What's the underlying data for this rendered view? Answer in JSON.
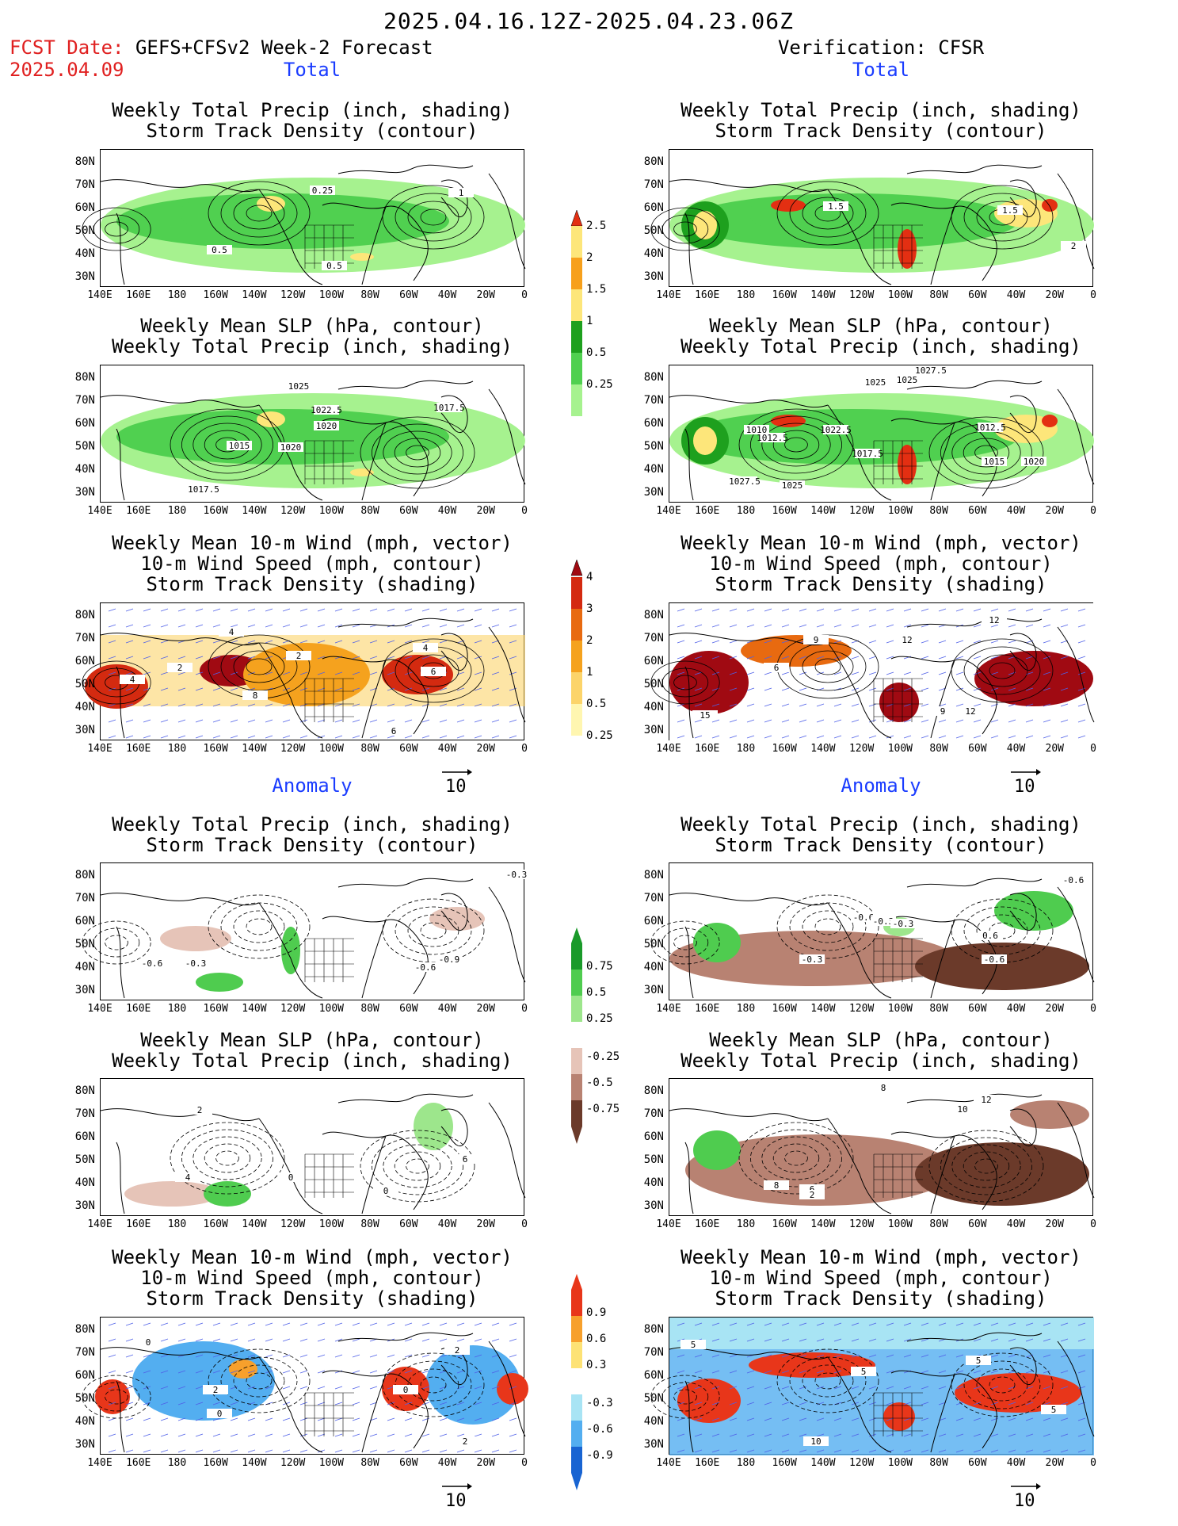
{
  "header": {
    "date_range": "2025.04.16.12Z-2025.04.23.06Z",
    "fcst_date_label": "FCST Date:",
    "forecast_name": "GEFS+CFSv2 Week-2 Forecast",
    "fcst_date_value": "2025.04.09",
    "verification": "Verification: CFSR"
  },
  "sections": {
    "total": "Total",
    "anomaly": "Anomaly"
  },
  "panel_titles": {
    "precip_storm": [
      "Weekly Total Precip (inch, shading)",
      "Storm Track Density (contour)"
    ],
    "slp_precip": [
      "Weekly Mean SLP (hPa, contour)",
      "Weekly Total Precip (inch, shading)"
    ],
    "wind_storm": [
      "Weekly Mean 10-m Wind (mph, vector)",
      "10-m Wind Speed (mph, contour)",
      "Storm Track Density (shading)"
    ]
  },
  "axes": {
    "lat_labels": [
      "80N",
      "70N",
      "60N",
      "50N",
      "40N",
      "30N"
    ],
    "lon_labels": [
      "140E",
      "160E",
      "180",
      "160W",
      "140W",
      "120W",
      "100W",
      "80W",
      "60W",
      "40W",
      "20W",
      "0"
    ]
  },
  "vector_ref": "10",
  "colorbars": {
    "precip_total": [
      "2.5",
      "2",
      "1.5",
      "1",
      "0.5",
      "0.25"
    ],
    "storm_total": [
      "4",
      "3",
      "2",
      "1",
      "0.5",
      "0.25"
    ],
    "precip_anom": [
      "0.75",
      "0.5",
      "0.25",
      "-0.25",
      "-0.5",
      "-0.75"
    ],
    "storm_anom": [
      "0.9",
      "0.6",
      "0.3",
      "-0.3",
      "-0.6",
      "-0.9"
    ]
  },
  "contour_labels": {
    "fc_tot_precip": [
      "0.25",
      "1",
      "0.5",
      "0.5"
    ],
    "ve_tot_precip": [
      "1.5",
      "1.5",
      "2"
    ],
    "fc_tot_slp": [
      "1025",
      "1022.5",
      "1017.5",
      "1020",
      "1015",
      "1020",
      "1017.5"
    ],
    "ve_tot_slp": [
      "1027.5",
      "1025",
      "1025",
      "1010",
      "1012.5",
      "1022.5",
      "1017.5",
      "1012.5",
      "1015",
      "1020",
      "1027.5",
      "1025"
    ],
    "fc_tot_wind": [
      "4",
      "2",
      "2",
      "4",
      "8",
      "6",
      "4",
      "6"
    ],
    "ve_tot_wind": [
      "12",
      "9",
      "6",
      "12",
      "15",
      "12",
      "9"
    ],
    "fc_anom_precip": [
      "-0.3",
      "-0.6",
      "-0.3",
      "-0.6",
      "-0.9"
    ],
    "ve_anom_precip": [
      "-0.6",
      "-0.6",
      "-0.3",
      "-0.3",
      "-0.6",
      "0.6",
      "-0.3"
    ],
    "fc_anom_slp": [
      "2",
      "4",
      "0",
      "6",
      "0"
    ],
    "ve_anom_slp": [
      "8",
      "10",
      "12",
      "8",
      "6",
      "2"
    ],
    "fc_anom_wind": [
      "0",
      "2",
      "0",
      "2",
      "0",
      "2"
    ],
    "ve_anom_wind": [
      "5",
      "5",
      "5",
      "10",
      "5"
    ]
  },
  "colors": {
    "precip_levels": [
      "#a6f28f",
      "#50d050",
      "#1ea01e",
      "#fde67a",
      "#f7a01c",
      "#e32f12"
    ],
    "storm_levels": [
      "#fff6b0",
      "#fcd46a",
      "#f5a21e",
      "#e86a10",
      "#d42a10",
      "#a00a12"
    ],
    "anom_precip_pos": [
      "#9de68c",
      "#4fcc4f",
      "#1a9a2a"
    ],
    "anom_precip_neg": [
      "#e6c4b8",
      "#b88272",
      "#6b3a2a"
    ],
    "anom_storm_pos": [
      "#fde275",
      "#f7a02c",
      "#e8361a"
    ],
    "anom_storm_neg": [
      "#a8e4f4",
      "#53aef0",
      "#1864d2"
    ],
    "wind_vector": "#5060e8",
    "title_red": "#e02020",
    "section_blue": "#1a3cff"
  }
}
